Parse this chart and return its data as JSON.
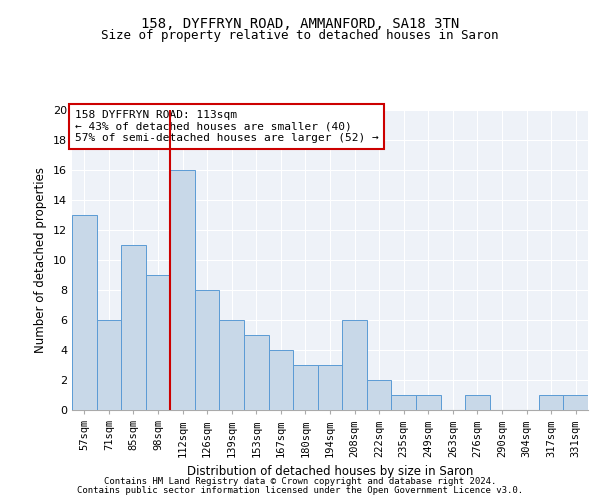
{
  "title1": "158, DYFFRYN ROAD, AMMANFORD, SA18 3TN",
  "title2": "Size of property relative to detached houses in Saron",
  "xlabel": "Distribution of detached houses by size in Saron",
  "ylabel": "Number of detached properties",
  "categories": [
    "57sqm",
    "71sqm",
    "85sqm",
    "98sqm",
    "112sqm",
    "126sqm",
    "139sqm",
    "153sqm",
    "167sqm",
    "180sqm",
    "194sqm",
    "208sqm",
    "222sqm",
    "235sqm",
    "249sqm",
    "263sqm",
    "276sqm",
    "290sqm",
    "304sqm",
    "317sqm",
    "331sqm"
  ],
  "values": [
    13,
    6,
    11,
    9,
    16,
    8,
    6,
    5,
    4,
    3,
    3,
    6,
    2,
    1,
    1,
    0,
    1,
    0,
    0,
    1,
    1
  ],
  "bar_color": "#c8d8e8",
  "bar_edge_color": "#5b9bd5",
  "vline_index": 4,
  "vline_color": "#cc0000",
  "annotation_title": "158 DYFFRYN ROAD: 113sqm",
  "annotation_line1": "← 43% of detached houses are smaller (40)",
  "annotation_line2": "57% of semi-detached houses are larger (52) →",
  "annotation_box_color": "#ffffff",
  "annotation_box_edge": "#cc0000",
  "ylim": [
    0,
    20
  ],
  "yticks": [
    0,
    2,
    4,
    6,
    8,
    10,
    12,
    14,
    16,
    18,
    20
  ],
  "footnote1": "Contains HM Land Registry data © Crown copyright and database right 2024.",
  "footnote2": "Contains public sector information licensed under the Open Government Licence v3.0.",
  "bg_color": "#eef2f8",
  "grid_color": "#ffffff"
}
